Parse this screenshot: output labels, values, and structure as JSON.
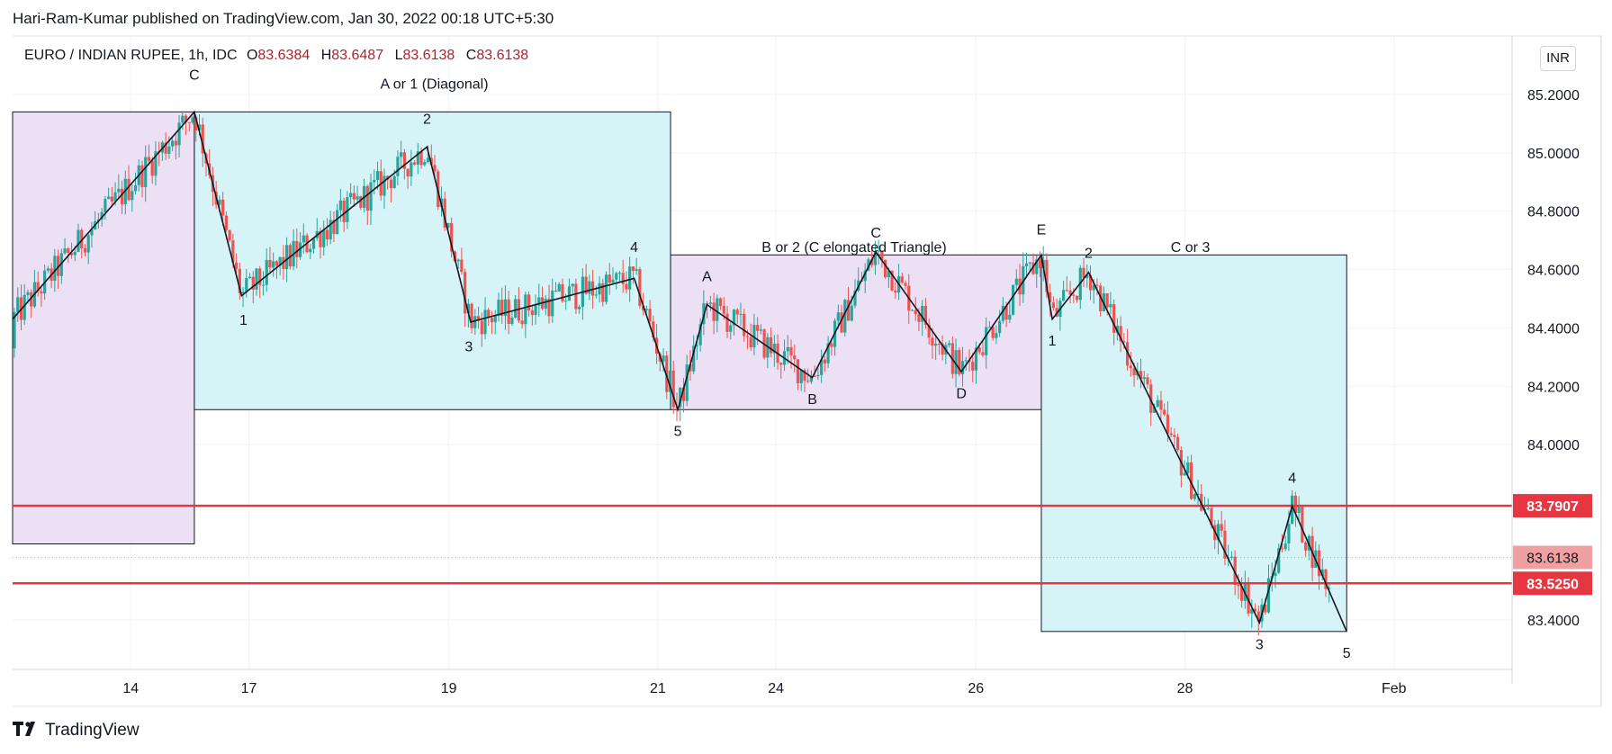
{
  "header": {
    "published": "Hari-Ram-Kumar published on TradingView.com, Jan 30, 2022 00:18 UTC+5:30"
  },
  "legend": {
    "symbol": "EURO / INDIAN RUPEE, 1h, IDC",
    "o_label": "O",
    "o_value": "83.6384",
    "h_label": "H",
    "h_value": "83.6487",
    "l_label": "L",
    "l_value": "83.6138",
    "c_label": "C",
    "c_value": "83.6138"
  },
  "currency": "INR",
  "footer": {
    "brand": "TradingView"
  },
  "colors": {
    "up": "#26a69a",
    "down": "#ef5350",
    "hline": "#e53642",
    "cyan_box": "#d6f3f8",
    "purple_box": "#ece0f4",
    "last_price_bg": "#f0a0a0"
  },
  "chart_data": {
    "type": "candlestick",
    "x_ticks": [
      {
        "label": "14",
        "t": 6.5
      },
      {
        "label": "17",
        "t": 13
      },
      {
        "label": "19",
        "t": 24
      },
      {
        "label": "21",
        "t": 35.5
      },
      {
        "label": "24",
        "t": 42
      },
      {
        "label": "26",
        "t": 53
      },
      {
        "label": "28",
        "t": 64.5
      },
      {
        "label": "Feb",
        "t": 76
      }
    ],
    "x_range": [
      0,
      82.5
    ],
    "y_ticks": [
      "85.2000",
      "85.0000",
      "84.8000",
      "84.6000",
      "84.4000",
      "84.2000",
      "84.0000",
      "83.4000"
    ],
    "ylim": [
      83.23,
      85.4
    ],
    "price_lines": [
      {
        "value": 83.7907,
        "label": "83.7907"
      },
      {
        "value": 83.525,
        "label": "83.5250"
      }
    ],
    "last_price": {
      "value": 83.6138,
      "label": "83.6138"
    },
    "zones": [
      {
        "t1": 0,
        "t2": 10,
        "top": 85.14,
        "bottom": 83.66,
        "color": "purple"
      },
      {
        "t1": 10,
        "t2": 36.2,
        "top": 85.14,
        "bottom": 84.12,
        "color": "cyan"
      },
      {
        "t1": 36.2,
        "t2": 56.6,
        "top": 84.65,
        "bottom": 84.12,
        "color": "purple"
      },
      {
        "t1": 56.6,
        "t2": 73.4,
        "top": 84.65,
        "bottom": 83.36,
        "color": "cyan"
      }
    ],
    "wave_path": [
      {
        "t": 0,
        "v": 84.43
      },
      {
        "t": 10,
        "v": 85.14
      },
      {
        "t": 12.6,
        "v": 84.51
      },
      {
        "t": 22.8,
        "v": 85.02
      },
      {
        "t": 25.2,
        "v": 84.42
      },
      {
        "t": 34.2,
        "v": 84.57
      },
      {
        "t": 36.6,
        "v": 84.12
      },
      {
        "t": 38.2,
        "v": 84.48
      },
      {
        "t": 44,
        "v": 84.23
      },
      {
        "t": 47.5,
        "v": 84.66
      },
      {
        "t": 52.2,
        "v": 84.25
      },
      {
        "t": 56.6,
        "v": 84.65
      },
      {
        "t": 57.2,
        "v": 84.43
      },
      {
        "t": 59.2,
        "v": 84.59
      },
      {
        "t": 68.6,
        "v": 83.39
      },
      {
        "t": 70.4,
        "v": 83.79
      },
      {
        "t": 73.4,
        "v": 83.36
      }
    ],
    "wave_labels": [
      {
        "text": "C",
        "t": 10,
        "v": 85.25
      },
      {
        "text": "A or 1 (Diagonal)",
        "t": 23.2,
        "v": 85.22
      },
      {
        "text": "2",
        "t": 22.8,
        "v": 85.1
      },
      {
        "text": "1",
        "t": 12.7,
        "v": 84.41
      },
      {
        "text": "3",
        "t": 25.1,
        "v": 84.32
      },
      {
        "text": "4",
        "t": 34.2,
        "v": 84.66
      },
      {
        "text": "5",
        "t": 36.6,
        "v": 84.03
      },
      {
        "text": "A",
        "t": 38.2,
        "v": 84.56
      },
      {
        "text": "B",
        "t": 44,
        "v": 84.14
      },
      {
        "text": "C",
        "t": 47.5,
        "v": 84.71
      },
      {
        "text": "B or 2 (C elongated Triangle)",
        "t": 46.3,
        "v": 84.66
      },
      {
        "text": "D",
        "t": 52.2,
        "v": 84.16
      },
      {
        "text": "E",
        "t": 56.6,
        "v": 84.72
      },
      {
        "text": "2",
        "t": 59.2,
        "v": 84.64
      },
      {
        "text": "C or 3",
        "t": 64.8,
        "v": 84.66
      },
      {
        "text": "1",
        "t": 57.2,
        "v": 84.34
      },
      {
        "text": "4",
        "t": 70.4,
        "v": 83.87
      },
      {
        "text": "3",
        "t": 68.6,
        "v": 83.3
      },
      {
        "text": "5",
        "t": 73.4,
        "v": 83.27
      }
    ]
  }
}
